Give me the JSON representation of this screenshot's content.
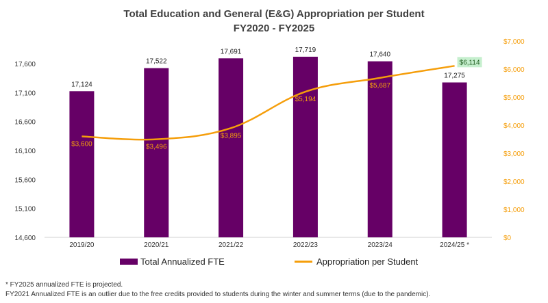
{
  "chart_data": {
    "type": "bar+line",
    "title": "Total Education and General (E&G) Appropriation per Student",
    "subtitle": "FY2020 - FY2025",
    "categories": [
      "2019/20",
      "2020/21",
      "2021/22",
      "2022/23",
      "2023/24",
      "2024/25 *"
    ],
    "y_left_ticks": [
      "14,600",
      "15,100",
      "15,600",
      "16,100",
      "16,600",
      "17,100",
      "17,600"
    ],
    "y_right_ticks": [
      "$0",
      "$1,000",
      "$2,000",
      "$3,000",
      "$4,000",
      "$5,000",
      "$6,000",
      "$7,000"
    ],
    "ylim_left": [
      14600,
      17600
    ],
    "ylim_right": [
      0,
      7000
    ],
    "series": [
      {
        "name": "Total Annualized FTE",
        "type": "bar",
        "axis": "left",
        "color": "#660066",
        "values": [
          17124,
          17522,
          17691,
          17719,
          17640,
          17275
        ],
        "labels": [
          "17,124",
          "17,522",
          "17,691",
          "17,719",
          "17,640",
          "17,275"
        ]
      },
      {
        "name": "Appropriation per Student",
        "type": "line",
        "axis": "right",
        "color": "#F59E0B",
        "values": [
          3600,
          3496,
          3895,
          5194,
          5687,
          6114
        ],
        "labels": [
          "$3,600",
          "$3,496",
          "$3,895",
          "$5,194",
          "$5,687",
          "$6,114"
        ],
        "highlight_last_label_color": "#C6EFCE"
      }
    ],
    "legend_position": "bottom",
    "grid": false
  },
  "notes": [
    "* FY2025 annualized FTE is projected.",
    "FY2021 Annualized FTE is an outlier due to the free credits provided to students during the winter and summer terms (due to the pandemic)."
  ]
}
